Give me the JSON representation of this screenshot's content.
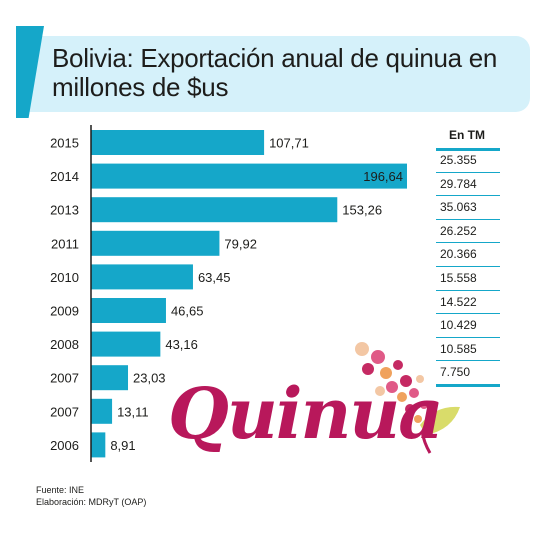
{
  "title": "Bolivia: Exportación anual de quinua en millones de $us",
  "tm_header": "En TM",
  "tm_values": [
    "25.355",
    "29.784",
    "35.063",
    "26.252",
    "20.366",
    "15.558",
    "14.522",
    "10.429",
    "10.585",
    "7.750"
  ],
  "source_lines": [
    "Fuente: INE",
    "Elaboración: MDRyT (OAP)"
  ],
  "logo_text": "Quinua",
  "colors": {
    "bar": "#15a7c9",
    "accent": "#15a7c9",
    "title_band": "#d5f1fa",
    "logo": "#b8185b",
    "text": "#1d1d1b"
  },
  "chart_data": {
    "type": "bar",
    "orientation": "horizontal",
    "title": "Bolivia: Exportación anual de quinua en millones de $us",
    "categories": [
      "2015",
      "2014",
      "2013",
      "2011",
      "2010",
      "2009",
      "2008",
      "2007",
      "2007",
      "2006"
    ],
    "values": [
      107.71,
      196.64,
      153.26,
      79.92,
      63.45,
      46.65,
      43.16,
      23.03,
      13.11,
      8.91
    ],
    "value_labels": [
      "107,71",
      "196,64",
      "153,26",
      "79,92",
      "63,45",
      "46,65",
      "43,16",
      "23,03",
      "13,11",
      "8,91"
    ],
    "xlim": [
      0,
      220
    ],
    "grid": false
  }
}
